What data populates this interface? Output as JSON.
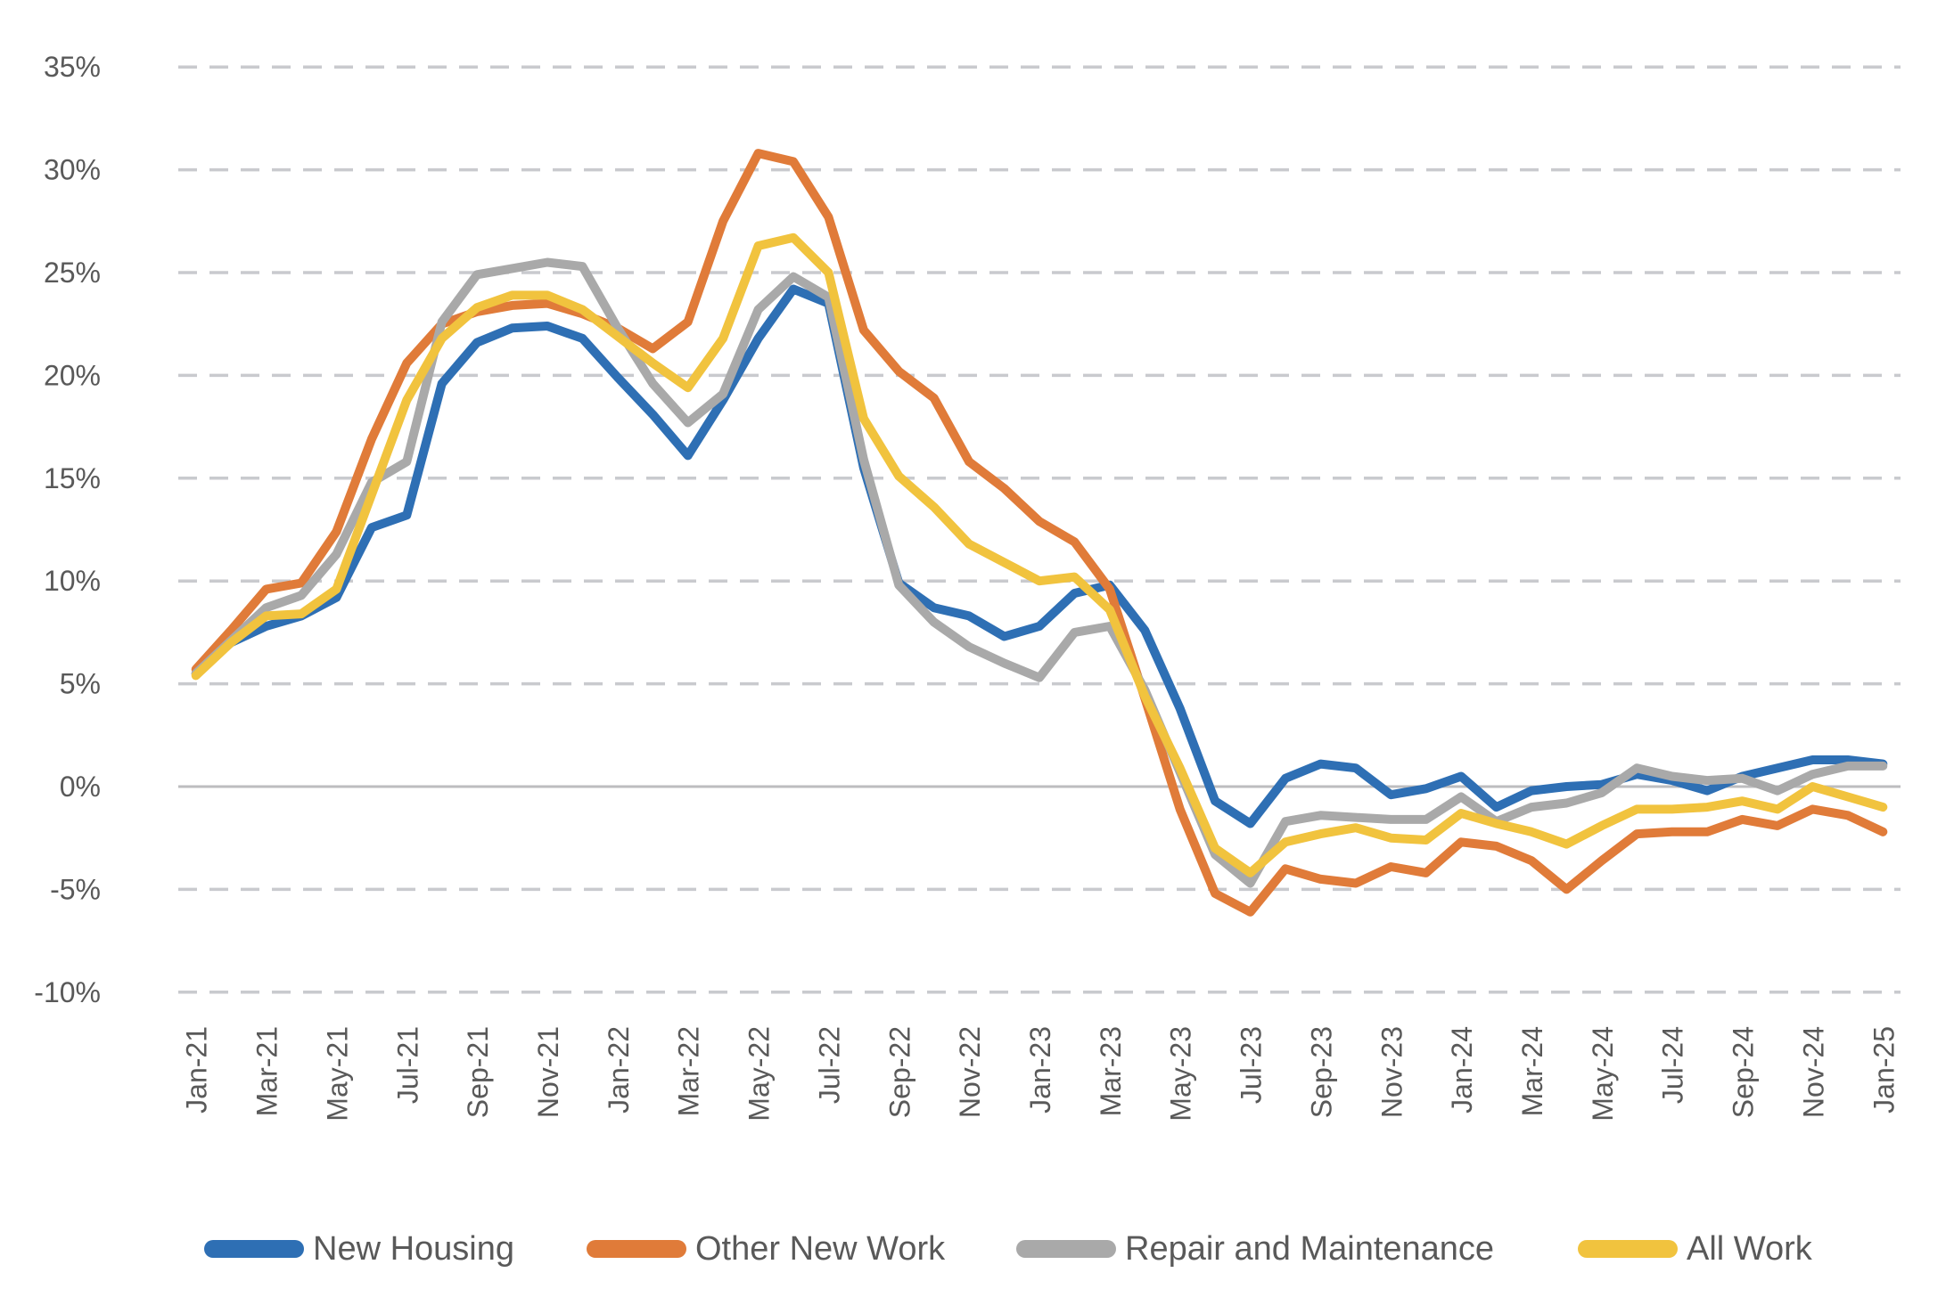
{
  "chart_data": {
    "type": "line",
    "title": "",
    "xlabel": "",
    "ylabel": "",
    "ylim": [
      -10,
      35
    ],
    "y_tick_interval": 5,
    "y_tick_labels": [
      "35%",
      "30%",
      "25%",
      "20%",
      "15%",
      "10%",
      "5%",
      "0%",
      "-5%",
      "-10%"
    ],
    "y_tick_values": [
      35,
      30,
      25,
      20,
      15,
      10,
      5,
      0,
      -5,
      -10
    ],
    "grid": "horizontal dashed gridlines, solid line at 0%",
    "legend_position": "bottom",
    "x_tick_step": 2,
    "x_labels": [
      "Jan-21",
      "Feb-21",
      "Mar-21",
      "Apr-21",
      "May-21",
      "Jun-21",
      "Jul-21",
      "Aug-21",
      "Sep-21",
      "Oct-21",
      "Nov-21",
      "Dec-21",
      "Jan-22",
      "Feb-22",
      "Mar-22",
      "Apr-22",
      "May-22",
      "Jun-22",
      "Jul-22",
      "Aug-22",
      "Sep-22",
      "Oct-22",
      "Nov-22",
      "Dec-22",
      "Jan-23",
      "Feb-23",
      "Mar-23",
      "Apr-23",
      "May-23",
      "Jun-23",
      "Jul-23",
      "Aug-23",
      "Sep-23",
      "Oct-23",
      "Nov-23",
      "Dec-23",
      "Jan-24",
      "Feb-24",
      "Mar-24",
      "Apr-24",
      "May-24",
      "Jun-24",
      "Jul-24",
      "Aug-24",
      "Sep-24",
      "Oct-24",
      "Nov-24",
      "Dec-24",
      "Jan-25"
    ],
    "series": [
      {
        "name": "New Housing",
        "color": "#2E6FB4",
        "values": [
          5.5,
          7.0,
          7.8,
          8.3,
          9.2,
          12.6,
          13.2,
          19.6,
          21.6,
          22.3,
          22.4,
          21.8,
          19.9,
          18.1,
          16.1,
          18.8,
          21.8,
          24.2,
          23.5,
          15.5,
          9.9,
          8.7,
          8.3,
          7.3,
          7.8,
          9.4,
          9.8,
          7.6,
          3.8,
          -0.7,
          -1.8,
          0.4,
          1.1,
          0.9,
          -0.4,
          -0.1,
          0.5,
          -1.0,
          -0.2,
          0.0,
          0.1,
          0.6,
          0.3,
          -0.2,
          0.5,
          0.9,
          1.3,
          1.3,
          1.1
        ]
      },
      {
        "name": "Other New Work",
        "color": "#E07B39",
        "values": [
          5.7,
          7.6,
          9.6,
          9.9,
          12.4,
          16.9,
          20.6,
          22.5,
          23.1,
          23.4,
          23.5,
          23.0,
          22.3,
          21.3,
          22.6,
          27.5,
          30.8,
          30.4,
          27.7,
          22.2,
          20.2,
          18.9,
          15.8,
          14.5,
          12.9,
          11.9,
          9.6,
          4.3,
          -1.1,
          -5.2,
          -6.1,
          -4.0,
          -4.5,
          -4.7,
          -3.9,
          -4.2,
          -2.7,
          -2.9,
          -3.6,
          -5.0,
          -3.6,
          -2.3,
          -2.2,
          -2.2,
          -1.6,
          -1.9,
          -1.1,
          -1.4,
          -2.2
        ]
      },
      {
        "name": "Repair and Maintenance",
        "color": "#A9A9A9",
        "values": [
          5.5,
          7.1,
          8.7,
          9.3,
          11.3,
          14.8,
          15.8,
          22.6,
          24.9,
          25.2,
          25.5,
          25.3,
          22.3,
          19.6,
          17.7,
          19.1,
          23.2,
          24.8,
          23.8,
          15.9,
          9.8,
          8.0,
          6.8,
          6.0,
          5.3,
          7.5,
          7.8,
          4.7,
          0.7,
          -3.3,
          -4.7,
          -1.7,
          -1.4,
          -1.5,
          -1.6,
          -1.6,
          -0.5,
          -1.7,
          -1.0,
          -0.8,
          -0.3,
          0.9,
          0.5,
          0.3,
          0.4,
          -0.2,
          0.6,
          1.0,
          1.0
        ]
      },
      {
        "name": "All Work",
        "color": "#F1C33E",
        "values": [
          5.4,
          7.0,
          8.3,
          8.4,
          9.6,
          14.2,
          18.8,
          21.8,
          23.3,
          23.9,
          23.9,
          23.2,
          21.9,
          20.6,
          19.4,
          21.8,
          26.3,
          26.7,
          25.0,
          17.9,
          15.1,
          13.6,
          11.8,
          10.9,
          10.0,
          10.2,
          8.6,
          4.4,
          0.9,
          -3.0,
          -4.2,
          -2.7,
          -2.3,
          -2.0,
          -2.5,
          -2.6,
          -1.3,
          -1.8,
          -2.2,
          -2.8,
          -1.9,
          -1.1,
          -1.1,
          -1.0,
          -0.7,
          -1.1,
          0.0,
          -0.5,
          -1.0
        ]
      }
    ],
    "style": {
      "grid_dash_color": "#C9CACE",
      "zero_line_color": "#BDBDBF",
      "axis_text_color": "#595959",
      "background": "#FFFFFF"
    }
  }
}
